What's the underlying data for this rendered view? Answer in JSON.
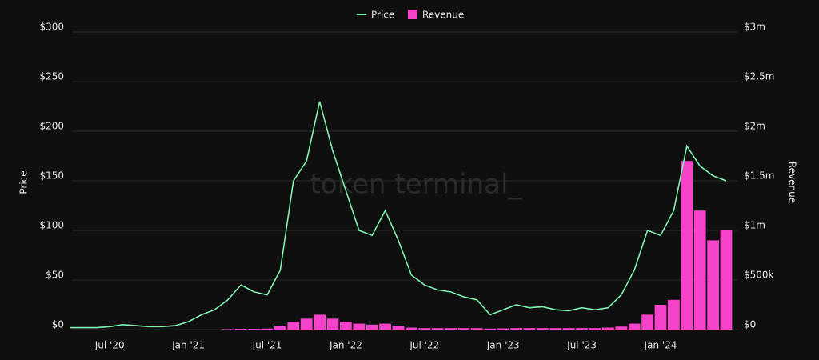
{
  "chart_data": {
    "type": "bar-line",
    "watermark": "token terminal_",
    "categories": [
      null,
      null,
      null,
      "Jul '20",
      null,
      null,
      null,
      null,
      null,
      "Jan '21",
      null,
      null,
      null,
      null,
      null,
      "Jul '21",
      null,
      null,
      null,
      null,
      null,
      "Jan '22",
      null,
      null,
      null,
      null,
      null,
      "Jul '22",
      null,
      null,
      null,
      null,
      null,
      "Jan '23",
      null,
      null,
      null,
      null,
      null,
      "Jul '23",
      null,
      null,
      null,
      null,
      null,
      "Jan '24",
      null,
      null,
      null,
      null,
      null
    ],
    "series": [
      {
        "name": "Price",
        "color": "#7ef0b0",
        "axis": "y",
        "kind": "line",
        "values": [
          2,
          2,
          2,
          3,
          5,
          4,
          3,
          3,
          4,
          8,
          15,
          20,
          30,
          45,
          38,
          35,
          60,
          150,
          170,
          230,
          180,
          140,
          100,
          95,
          120,
          90,
          55,
          45,
          40,
          38,
          33,
          30,
          15,
          20,
          25,
          22,
          23,
          20,
          19,
          22,
          20,
          22,
          35,
          60,
          100,
          95,
          120,
          185,
          165,
          155,
          150
        ]
      },
      {
        "name": "Revenue",
        "color": "#f542c8",
        "axis": "y2",
        "kind": "bar",
        "values": [
          0,
          0,
          0,
          0,
          0,
          0,
          0,
          0,
          0,
          0,
          0,
          0,
          5000,
          8000,
          8000,
          10000,
          40000,
          80000,
          110000,
          150000,
          110000,
          80000,
          60000,
          50000,
          60000,
          40000,
          20000,
          15000,
          15000,
          15000,
          15000,
          15000,
          10000,
          12000,
          15000,
          15000,
          15000,
          15000,
          15000,
          15000,
          15000,
          20000,
          30000,
          60000,
          150000,
          250000,
          300000,
          1700000,
          1200000,
          900000,
          1000000
        ]
      }
    ],
    "ylabel": "Price",
    "y2label": "Revenue",
    "ylim": [
      0,
      300
    ],
    "yticks": [
      {
        "value": 0,
        "label": "$0"
      },
      {
        "value": 50,
        "label": "$50"
      },
      {
        "value": 100,
        "label": "$100"
      },
      {
        "value": 150,
        "label": "$150"
      },
      {
        "value": 200,
        "label": "$200"
      },
      {
        "value": 250,
        "label": "$250"
      },
      {
        "value": 300,
        "label": "$300"
      }
    ],
    "y2lim": [
      0,
      3000000
    ],
    "y2ticks": [
      {
        "value": 0,
        "label": "$0"
      },
      {
        "value": 500000,
        "label": "$500k"
      },
      {
        "value": 1000000,
        "label": "$1m"
      },
      {
        "value": 1500000,
        "label": "$1.5m"
      },
      {
        "value": 2000000,
        "label": "$2m"
      },
      {
        "value": 2500000,
        "label": "$2.5m"
      },
      {
        "value": 3000000,
        "label": "$3m"
      }
    ],
    "grid": true,
    "legend": "top"
  }
}
